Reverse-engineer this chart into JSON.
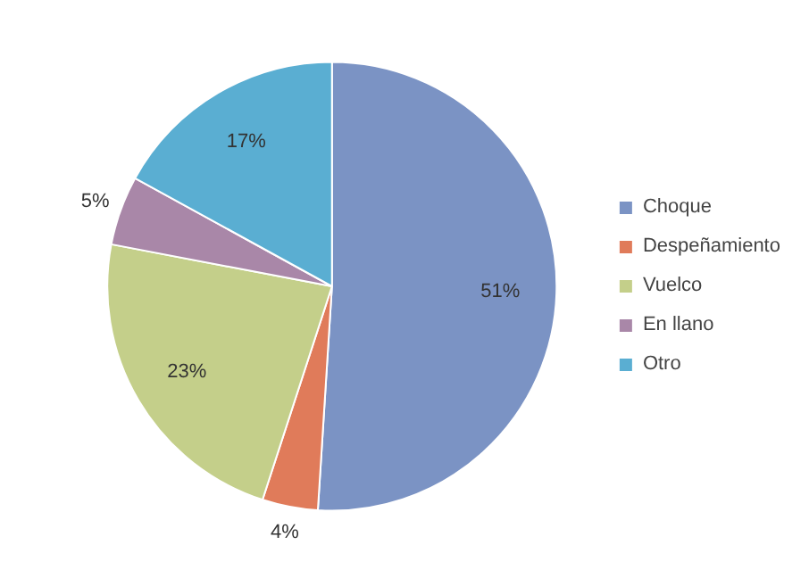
{
  "chart_data": {
    "type": "pie",
    "categories": [
      "Choque",
      "Despeñamiento",
      "Vuelco",
      "En llano",
      "Otro"
    ],
    "values": [
      51,
      4,
      23,
      5,
      17
    ],
    "value_labels": [
      "51%",
      "4%",
      "23%",
      "5%",
      "17%"
    ],
    "colors": [
      "#7b93c4",
      "#e07b5a",
      "#c4cf8a",
      "#a987a8",
      "#5aaed2"
    ],
    "legend": "right"
  }
}
